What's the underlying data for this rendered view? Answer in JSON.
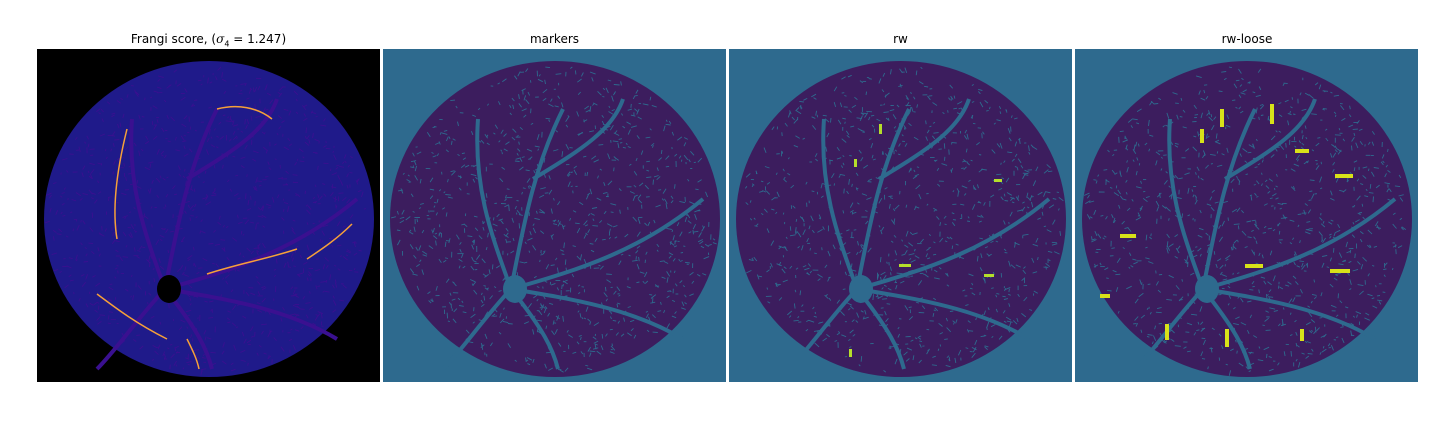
{
  "panels": [
    {
      "title_prefix": "Frangi score, (",
      "title_sigma": "σ",
      "title_sub": "4",
      "title_suffix": " = 1.247)",
      "bg": "#000000",
      "disc": "#1f1a8a",
      "vessel": "#3a1090",
      "highlight": "#f6a03a"
    },
    {
      "title": "markers",
      "bg": "#2e6a8e",
      "disc": "#3c1d5e",
      "vessel": "#2e6a8e",
      "highlight": "#3fa18a"
    },
    {
      "title": "rw",
      "bg": "#2e6a8e",
      "disc": "#3c1d5e",
      "vessel": "#2e6a8e",
      "highlight": "#b5de2b"
    },
    {
      "title": "rw-loose",
      "bg": "#2e6a8e",
      "disc": "#3c1d5e",
      "vessel": "#2e6a8e",
      "highlight": "#d8e219"
    }
  ]
}
